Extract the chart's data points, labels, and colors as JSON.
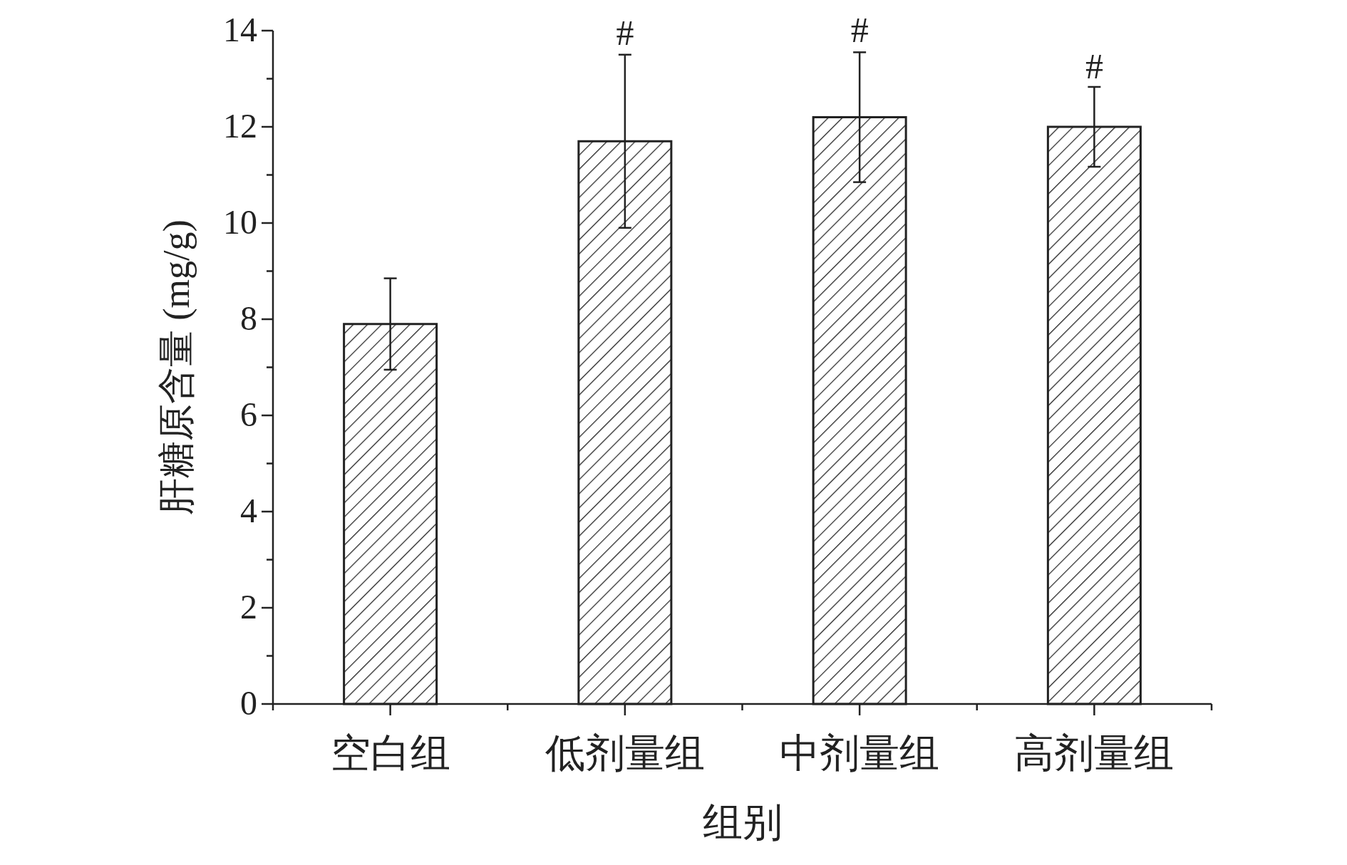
{
  "chart_data": {
    "type": "bar",
    "xlabel": "组别",
    "ylabel": "肝糖原含量 (mg/g)",
    "categories": [
      "空白组",
      "低剂量组",
      "中剂量组",
      "高剂量组"
    ],
    "series": [
      {
        "color": "#ffffff",
        "values": [
          7.9,
          11.7,
          12.2,
          12.0
        ],
        "errors": [
          0.95,
          1.8,
          1.35,
          0.83
        ]
      }
    ],
    "ylim": [
      0,
      14
    ],
    "yticks": [
      0,
      {
        "value": 1,
        "label": null
      },
      2,
      {
        "value": 3,
        "label": null
      },
      4,
      {
        "value": 5,
        "label": null
      },
      6,
      {
        "value": 7,
        "label": null
      },
      8,
      {
        "value": 9,
        "label": null
      },
      10,
      {
        "value": 11,
        "label": null
      },
      12,
      {
        "value": 13,
        "label": null
      },
      14
    ],
    "annotations": [
      {
        "text": "#",
        "x": "低剂量组",
        "y": 13.5
      },
      {
        "text": "#",
        "x": "中剂量组",
        "y": 13.55
      },
      {
        "text": "#",
        "x": "高剂量组",
        "y": 12.8
      }
    ],
    "grid": false
  }
}
